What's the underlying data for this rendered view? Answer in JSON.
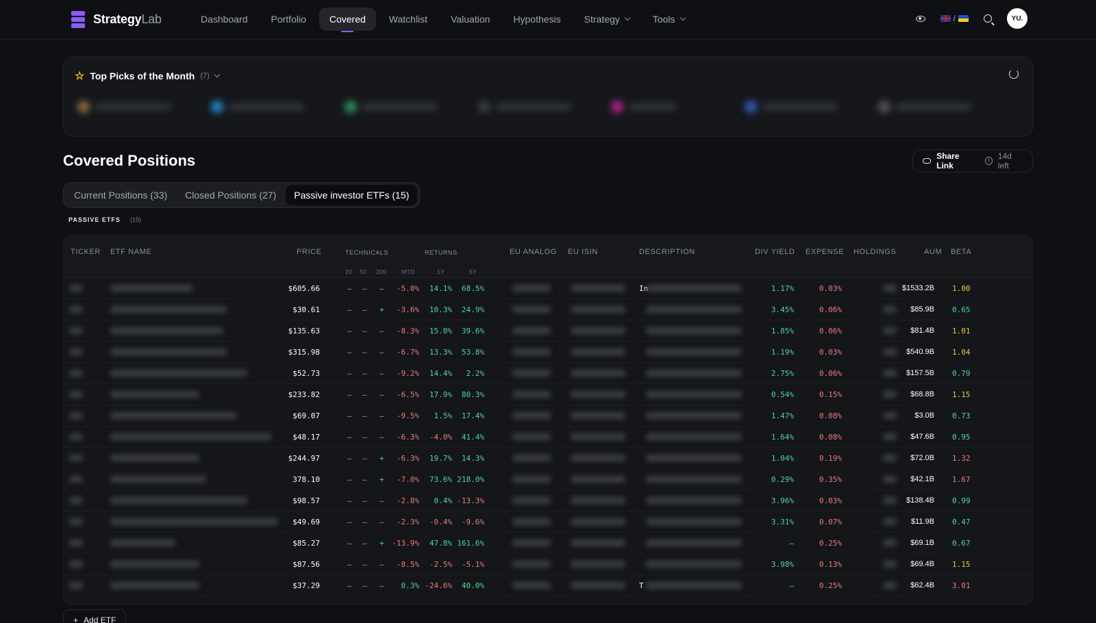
{
  "brand": {
    "name_bold": "Strategy",
    "name_thin": "Lab"
  },
  "nav": {
    "items": [
      "Dashboard",
      "Portfolio",
      "Covered",
      "Watchlist",
      "Valuation",
      "Hypothesis",
      "Strategy",
      "Tools"
    ],
    "active": "Covered"
  },
  "header": {
    "lang_separator": "/",
    "avatar": "YU."
  },
  "picks": {
    "title": "Top Picks of the Month",
    "count": "(7)"
  },
  "page": {
    "title": "Covered Positions"
  },
  "share": {
    "label": "Share Link",
    "time_left": "14d left"
  },
  "tabs": [
    "Current Positions (33)",
    "Closed Positions (27)",
    "Passive investor ETFs (15)"
  ],
  "section": {
    "label": "PASSIVE ETFS",
    "count": "(15)"
  },
  "table": {
    "headers": {
      "ticker": "TICKER",
      "name": "ETF NAME",
      "price": "PRICE",
      "technicals": "TECHNICALS",
      "returns": "RETURNS",
      "eu_analog": "EU ANALOG",
      "eu_isin": "EU ISIN",
      "description": "DESCRIPTION",
      "div_yield": "DIV YIELD",
      "expense": "EXPENSE",
      "holdings": "HOLDINGS",
      "aum": "AUM",
      "beta": "BETA"
    },
    "subheaders": {
      "t20": "20",
      "t50": "50",
      "t200": "200",
      "mtd": "MTD",
      "y1": "1Y",
      "y5": "5Y"
    },
    "rows": [
      {
        "price": "$605.66",
        "t20": "–",
        "t50": "–",
        "t200": "–",
        "mtd": "-5.0%",
        "y1": "14.1%",
        "y5": "68.5%",
        "desc": "In",
        "div": "1.17%",
        "exp": "0.03%",
        "aum": "$1533.2B",
        "beta": "1.00"
      },
      {
        "price": "$30.61",
        "t20": "–",
        "t50": "–",
        "t200": "+",
        "mtd": "-3.6%",
        "y1": "10.3%",
        "y5": "24.9%",
        "desc": "",
        "div": "3.45%",
        "exp": "0.06%",
        "aum": "$85.9B",
        "beta": "0.65"
      },
      {
        "price": "$135.63",
        "t20": "–",
        "t50": "–",
        "t200": "–",
        "mtd": "-8.3%",
        "y1": "15.0%",
        "y5": "39.6%",
        "desc": "",
        "div": "1.85%",
        "exp": "0.06%",
        "aum": "$81.4B",
        "beta": "1.01"
      },
      {
        "price": "$315.98",
        "t20": "–",
        "t50": "–",
        "t200": "–",
        "mtd": "-6.7%",
        "y1": "13.3%",
        "y5": "53.8%",
        "desc": "",
        "div": "1.19%",
        "exp": "0.03%",
        "aum": "$540.9B",
        "beta": "1.04"
      },
      {
        "price": "$52.73",
        "t20": "–",
        "t50": "–",
        "t200": "–",
        "mtd": "-9.2%",
        "y1": "14.4%",
        "y5": "2.2%",
        "desc": "",
        "div": "2.75%",
        "exp": "0.06%",
        "aum": "$157.5B",
        "beta": "0.79"
      },
      {
        "price": "$233.82",
        "t20": "–",
        "t50": "–",
        "t200": "–",
        "mtd": "-6.5%",
        "y1": "17.9%",
        "y5": "80.3%",
        "desc": "",
        "div": "0.54%",
        "exp": "0.15%",
        "aum": "$68.8B",
        "beta": "1.15"
      },
      {
        "price": "$69.07",
        "t20": "–",
        "t50": "–",
        "t200": "–",
        "mtd": "-9.5%",
        "y1": "1.5%",
        "y5": "17.4%",
        "desc": "",
        "div": "1.47%",
        "exp": "0.08%",
        "aum": "$3.0B",
        "beta": "0.73"
      },
      {
        "price": "$48.17",
        "t20": "–",
        "t50": "–",
        "t200": "–",
        "mtd": "-6.3%",
        "y1": "-4.0%",
        "y5": "41.4%",
        "desc": "",
        "div": "1.64%",
        "exp": "0.08%",
        "aum": "$47.6B",
        "beta": "0.95"
      },
      {
        "price": "$244.97",
        "t20": "–",
        "t50": "–",
        "t200": "+",
        "mtd": "-6.3%",
        "y1": "19.7%",
        "y5": "14.3%",
        "desc": "",
        "div": "1.04%",
        "exp": "0.19%",
        "aum": "$72.0B",
        "beta": "1.32"
      },
      {
        "price": "378.10",
        "t20": "–",
        "t50": "–",
        "t200": "+",
        "mtd": "-7.0%",
        "y1": "73.6%",
        "y5": "218.0%",
        "desc": "",
        "div": "0.29%",
        "exp": "0.35%",
        "aum": "$42.1B",
        "beta": "1.67"
      },
      {
        "price": "$98.57",
        "t20": "–",
        "t50": "–",
        "t200": "–",
        "mtd": "-2.8%",
        "y1": "0.4%",
        "y5": "-13.3%",
        "desc": "",
        "div": "3.96%",
        "exp": "0.03%",
        "aum": "$138.4B",
        "beta": "0.99"
      },
      {
        "price": "$49.69",
        "t20": "–",
        "t50": "–",
        "t200": "–",
        "mtd": "-2.3%",
        "y1": "-0.4%",
        "y5": "-9.6%",
        "desc": "",
        "div": "3.31%",
        "exp": "0.07%",
        "aum": "$11.9B",
        "beta": "0.47"
      },
      {
        "price": "$85.27",
        "t20": "–",
        "t50": "–",
        "t200": "+",
        "mtd": "-13.9%",
        "y1": "47.8%",
        "y5": "161.6%",
        "desc": "",
        "div": "–",
        "exp": "0.25%",
        "aum": "$69.1B",
        "beta": "0.67"
      },
      {
        "price": "$87.56",
        "t20": "–",
        "t50": "–",
        "t200": "–",
        "mtd": "-8.5%",
        "y1": "-2.5%",
        "y5": "-5.1%",
        "desc": "",
        "div": "3.98%",
        "exp": "0.13%",
        "aum": "$69.4B",
        "beta": "1.15"
      },
      {
        "price": "$37.29",
        "t20": "–",
        "t50": "–",
        "t200": "–",
        "mtd": "0.3%",
        "y1": "-24.6%",
        "y5": "40.0%",
        "desc": "T",
        "div": "–",
        "exp": "0.25%",
        "aum": "$62.4B",
        "beta": "3.01"
      }
    ]
  },
  "add_button": "Add ETF",
  "colors": {
    "accent": "#8b5cf6",
    "positive": "#4fd69c",
    "negative": "#f0797a",
    "beta_high": "#f5c542"
  }
}
